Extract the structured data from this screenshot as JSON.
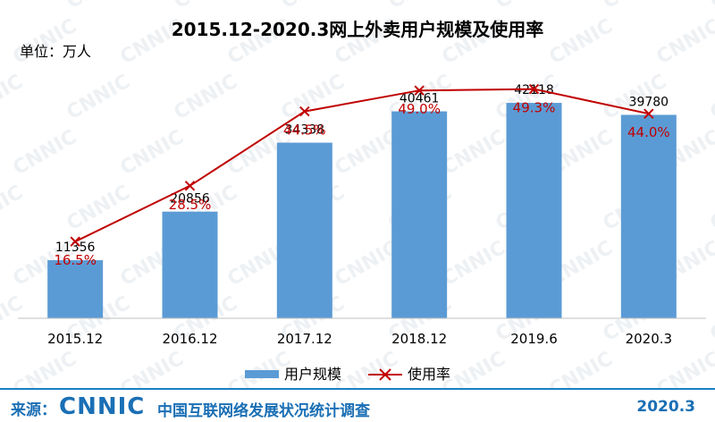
{
  "chart_data": {
    "type": "bar",
    "title": "2015.12-2020.3网上外卖用户规模及使用率",
    "unit_label": "单位：万人",
    "categories": [
      "2015.12",
      "2016.12",
      "2017.12",
      "2018.12",
      "2019.6",
      "2020.3"
    ],
    "series": [
      {
        "name": "用户规模",
        "type": "bar",
        "color": "#5b9bd5",
        "values": [
          11356,
          20856,
          34338,
          40461,
          42118,
          39780
        ],
        "labels": [
          "11356",
          "20856",
          "34338",
          "40461",
          "42118",
          "39780"
        ]
      },
      {
        "name": "使用率",
        "type": "line",
        "color": "#c00000",
        "marker": "x",
        "values": [
          16.5,
          28.5,
          44.5,
          49.0,
          49.3,
          44.0
        ],
        "labels": [
          "16.5%",
          "28.5%",
          "44.5%",
          "49.0%",
          "49.3%",
          "44.0%"
        ]
      }
    ],
    "bar_ylim": [
      0,
      50000
    ],
    "line_ylim": [
      0,
      55
    ],
    "grid": false,
    "legend": "bottom",
    "watermark": "CNNIC"
  },
  "footer": {
    "source_label": "来源：",
    "logo_text": "CNNIC",
    "org": "中国互联网络发展状况统计调查",
    "date": "2020.3"
  }
}
